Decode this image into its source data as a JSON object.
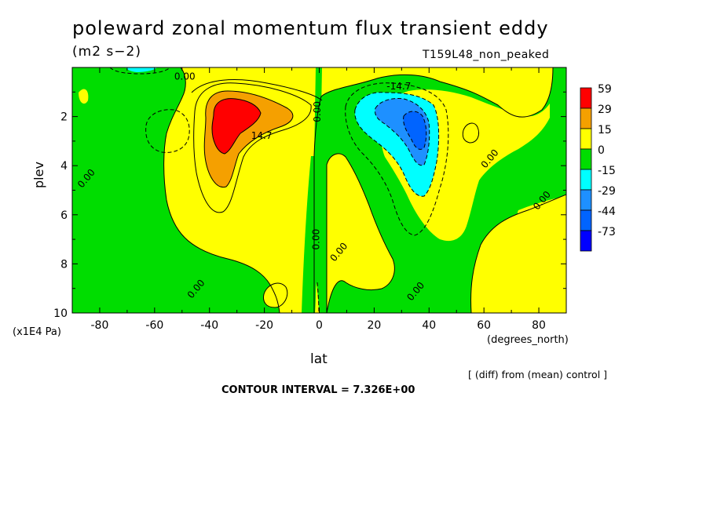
{
  "title": "poleward zonal momentum flux transient eddy",
  "units": "(m2 s−2)",
  "run_label": "T159L48_non_peaked",
  "note": "[ (diff) from (mean) control ]",
  "contour_interval_text": "CONTOUR INTERVAL = 7.326E+00",
  "chart_data": {
    "type": "heatmap",
    "title": "poleward zonal momentum flux transient eddy",
    "xlabel": "lat",
    "x_unit_label": "(degrees_north)",
    "ylabel": "plev",
    "y_unit_label": "(x1E4 Pa)",
    "xlim": [
      -90,
      90
    ],
    "ylim": [
      10,
      0
    ],
    "x_ticks": [
      -80,
      -60,
      -40,
      -20,
      0,
      20,
      40,
      60,
      80
    ],
    "x_tick_labels": [
      "-80",
      "-60",
      "-40",
      "-20",
      "0",
      "20",
      "40",
      "60",
      "80"
    ],
    "y_ticks": [
      2,
      4,
      6,
      8,
      10
    ],
    "y_tick_labels": [
      "2",
      "4",
      "6",
      "8",
      "10"
    ],
    "legend": {
      "labels": [
        "59",
        "29",
        "15",
        "0",
        "-15",
        "-29",
        "-44",
        "-73"
      ],
      "colors": [
        "#ff0000",
        "#f5a000",
        "#ffff00",
        "#00dd00",
        "#00ffff",
        "#1e90ff",
        "#0064ff",
        "#0000ff"
      ],
      "placement": "right"
    },
    "contour_labels": [
      {
        "text": "0.00",
        "x": -49,
        "y": 0.5
      },
      {
        "text": "-14.7",
        "x": 29,
        "y": 0.9
      },
      {
        "text": "0.00",
        "x": 0.5,
        "y": 1.8
      },
      {
        "text": "14.7",
        "x": -21,
        "y": 2.9
      },
      {
        "text": "0.00",
        "x": -84,
        "y": 4.6
      },
      {
        "text": "0.00",
        "x": 63,
        "y": 3.8
      },
      {
        "text": "0.00",
        "x": 82,
        "y": 5.5
      },
      {
        "text": "0.00",
        "x": 0,
        "y": 7.0
      },
      {
        "text": "0.00",
        "x": 8,
        "y": 7.6
      },
      {
        "text": "0.00",
        "x": -44,
        "y": 9.1
      },
      {
        "text": "0.00",
        "x": 36,
        "y": 9.2
      }
    ],
    "features": [
      {
        "label": "positive max",
        "x": -33,
        "y": 2.3,
        "value": 59
      },
      {
        "label": "negative min",
        "x": 34,
        "y": 2.4,
        "value": -73
      }
    ]
  }
}
